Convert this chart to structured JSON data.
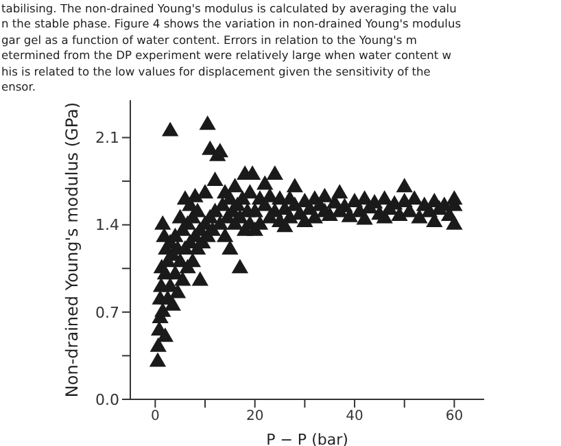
{
  "chart_data": {
    "type": "scatter",
    "ylabel": "Non-drained Young's modulus (GPa)",
    "xlabel": "P − P (bar)",
    "annotations": [
      "tabilising. The non-drained Young's modulus is calculated by averaging the valu",
      "n the stable phase. Figure 4 shows the variation in non-drained Young's modulus",
      "gar gel as a function of water content. Errors in relation to the Young's m",
      "etermined from the DP experiment were relatively large when water content w",
      "his is related to the low values for displacement given the sensitivity of the",
      "ensor."
    ],
    "xlim": [
      -5,
      66
    ],
    "xticks": [
      0,
      {
        "value": 10,
        "label": null
      },
      20,
      {
        "value": 30,
        "label": null
      },
      40,
      {
        "value": 50,
        "label": null
      },
      60
    ],
    "ylim": [
      0,
      2.4
    ],
    "yticks": [
      {
        "value": 0,
        "label": "0.0"
      },
      {
        "value": 0.35,
        "label": null
      },
      0.7,
      {
        "value": 1.05,
        "label": null
      },
      1.4,
      {
        "value": 1.75,
        "label": null
      },
      2.1
    ],
    "marker": "triangle",
    "grid": false,
    "series": [
      {
        "color": "#1a1a1a",
        "x": [
          0.5,
          0.6,
          0.8,
          1,
          1,
          1.2,
          1.3,
          1.5,
          1.5,
          1.8,
          2,
          2,
          2.2,
          2.5,
          2.5,
          3,
          3,
          3,
          3.5,
          3.5,
          4,
          4,
          4.5,
          4.5,
          5,
          5,
          5.5,
          5.5,
          6,
          6,
          6.5,
          6.5,
          7,
          7,
          7.5,
          7.5,
          8,
          8,
          8.5,
          8.5,
          9,
          9,
          9.5,
          10,
          10,
          10.5,
          10.5,
          11,
          11,
          11.5,
          12,
          12,
          12.5,
          13,
          13,
          13.5,
          14,
          14,
          14.5,
          15,
          15,
          15.5,
          16,
          16,
          16.5,
          17,
          17,
          17.5,
          18,
          18,
          18.5,
          19,
          19,
          19.5,
          20,
          20,
          21,
          21,
          22,
          22,
          23,
          23,
          24,
          24,
          25,
          25,
          26,
          26,
          27,
          27,
          28,
          28,
          29,
          30,
          30,
          31,
          32,
          32,
          33,
          34,
          34,
          35,
          36,
          37,
          37,
          38,
          39,
          40,
          41,
          42,
          42,
          43,
          44,
          45,
          46,
          46,
          47,
          48,
          49,
          50,
          50,
          51,
          52,
          53,
          54,
          55,
          56,
          56,
          57,
          58,
          59,
          60,
          60,
          60
        ],
        "values": [
          0.3,
          0.42,
          0.55,
          0.65,
          0.8,
          0.9,
          1.05,
          0.7,
          1.4,
          1.3,
          0.5,
          1.0,
          1.2,
          0.8,
          1.1,
          0.9,
          1.25,
          2.15,
          0.75,
          1.15,
          1.0,
          1.3,
          0.85,
          1.2,
          1.1,
          1.45,
          0.95,
          1.35,
          1.2,
          1.6,
          1.05,
          1.4,
          1.25,
          1.55,
          1.1,
          1.45,
          1.3,
          1.62,
          1.2,
          1.5,
          1.35,
          0.95,
          1.25,
          1.4,
          1.65,
          2.2,
          1.3,
          2.0,
          1.45,
          1.35,
          1.5,
          1.75,
          1.95,
          1.98,
          1.4,
          1.55,
          1.3,
          1.65,
          1.45,
          1.6,
          1.2,
          1.5,
          1.4,
          1.7,
          1.55,
          1.05,
          1.45,
          1.6,
          1.35,
          1.8,
          1.5,
          1.65,
          1.4,
          1.8,
          1.5,
          1.35,
          1.6,
          1.4,
          1.55,
          1.72,
          1.45,
          1.62,
          1.5,
          1.8,
          1.42,
          1.6,
          1.52,
          1.38,
          1.6,
          1.45,
          1.55,
          1.7,
          1.48,
          1.58,
          1.42,
          1.52,
          1.6,
          1.45,
          1.55,
          1.5,
          1.62,
          1.47,
          1.57,
          1.5,
          1.65,
          1.54,
          1.46,
          1.58,
          1.5,
          1.6,
          1.44,
          1.53,
          1.57,
          1.48,
          1.6,
          1.45,
          1.52,
          1.56,
          1.47,
          1.58,
          1.7,
          1.5,
          1.6,
          1.45,
          1.55,
          1.5,
          1.58,
          1.42,
          1.52,
          1.55,
          1.47,
          1.55,
          1.4,
          1.6
        ]
      }
    ]
  }
}
